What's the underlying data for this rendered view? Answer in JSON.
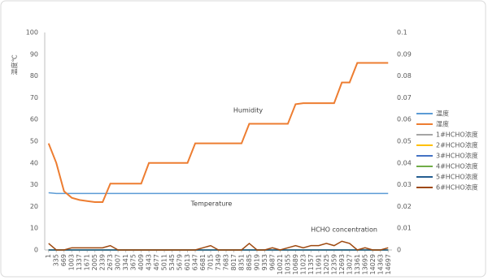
{
  "chart_data": {
    "type": "line",
    "y_label": "温度℃",
    "annotations": [
      "Humidity",
      "Temperature",
      "HCHO concentration"
    ],
    "categories": [
      1,
      335,
      669,
      1003,
      1337,
      1671,
      2005,
      2339,
      2673,
      3007,
      3341,
      3675,
      4009,
      4343,
      4677,
      5011,
      5345,
      5679,
      6013,
      6347,
      6681,
      7015,
      7349,
      7683,
      8017,
      8351,
      8685,
      9019,
      9353,
      9687,
      10021,
      10355,
      10689,
      11023,
      11357,
      11691,
      12025,
      12359,
      12693,
      13027,
      13361,
      13695,
      14029,
      14363,
      14697
    ],
    "ylim": [
      0,
      100
    ],
    "yticks": [
      0,
      10,
      20,
      30,
      40,
      50,
      60,
      70,
      80,
      90,
      100
    ],
    "y2lim": [
      0,
      0.1
    ],
    "y2ticks": [
      0,
      0.01,
      0.02,
      0.03,
      0.04,
      0.05,
      0.06,
      0.07,
      0.08,
      0.09,
      0.1
    ],
    "grid": false,
    "legend": "right",
    "series": [
      {
        "name": "温度",
        "color": "#5b9bd5",
        "values": [
          26.3,
          26,
          26,
          26,
          26,
          26,
          26,
          26,
          26,
          26,
          26,
          26,
          26,
          26,
          26,
          26,
          26,
          26,
          26,
          26,
          26,
          26,
          26,
          26,
          26,
          26,
          26,
          26,
          26,
          26,
          26,
          26,
          26,
          26,
          26,
          26,
          26,
          26,
          26,
          26,
          26,
          26,
          26,
          26,
          26
        ]
      },
      {
        "name": "湿度",
        "color": "#ed7d31",
        "values": [
          49,
          40,
          27,
          24,
          23,
          22.5,
          22,
          22,
          30.5,
          30.5,
          30.5,
          30.5,
          30.5,
          40,
          40,
          40,
          40,
          40,
          40,
          49,
          49,
          49,
          49,
          49,
          49,
          49,
          58,
          58,
          58,
          58,
          58,
          58,
          67,
          67.5,
          67.5,
          67.5,
          67.5,
          67.5,
          77,
          77,
          86,
          86,
          86,
          86,
          86
        ]
      },
      {
        "name": "1#HCHO浓度",
        "color": "#a5a5a5",
        "axis": "y2",
        "values": [
          0,
          0,
          0,
          0,
          0,
          0,
          0,
          0,
          0,
          0,
          0,
          0,
          0,
          0,
          0,
          0,
          0,
          0,
          0,
          0,
          0,
          0,
          0,
          0,
          0,
          0,
          0,
          0,
          0,
          0,
          0,
          0,
          0,
          0,
          0,
          0,
          0,
          0,
          0,
          0,
          0,
          0,
          0,
          0,
          0
        ]
      },
      {
        "name": "2#HCHO浓度",
        "color": "#ffc000",
        "axis": "y2",
        "values": [
          0,
          0,
          0,
          0,
          0,
          0,
          0,
          0,
          0,
          0,
          0,
          0,
          0,
          0,
          0,
          0,
          0,
          0,
          0,
          0,
          0,
          0,
          0,
          0,
          0,
          0,
          0,
          0,
          0,
          0,
          0,
          0,
          0,
          0,
          0,
          0,
          0,
          0,
          0,
          0,
          0,
          0,
          0,
          0,
          0
        ]
      },
      {
        "name": "3#HCHO浓度",
        "color": "#4472c4",
        "axis": "y2",
        "values": [
          0,
          0,
          0,
          0,
          0,
          0,
          0,
          0,
          0,
          0,
          0,
          0,
          0,
          0,
          0,
          0,
          0,
          0,
          0,
          0,
          0,
          0,
          0,
          0,
          0,
          0,
          0,
          0,
          0,
          0,
          0,
          0,
          0,
          0,
          0,
          0,
          0,
          0,
          0,
          0,
          0,
          0,
          0,
          0,
          0
        ]
      },
      {
        "name": "4#HCHO浓度",
        "color": "#70ad47",
        "axis": "y2",
        "values": [
          0,
          0,
          0,
          0,
          0,
          0,
          0,
          0,
          0,
          0,
          0,
          0,
          0,
          0,
          0,
          0,
          0,
          0,
          0,
          0,
          0,
          0,
          0,
          0,
          0,
          0,
          0,
          0,
          0,
          0,
          0,
          0,
          0,
          0,
          0,
          0,
          0,
          0,
          0,
          0,
          0,
          0,
          0,
          0,
          0
        ]
      },
      {
        "name": "5#HCHO浓度",
        "color": "#255e91",
        "axis": "y2",
        "values": [
          0,
          0,
          0,
          0,
          0,
          0,
          0,
          0,
          0,
          0,
          0,
          0,
          0,
          0,
          0,
          0,
          0,
          0,
          0,
          0,
          0,
          0,
          0,
          0,
          0,
          0,
          0,
          0,
          0,
          0,
          0,
          0,
          0,
          0,
          0,
          0,
          0,
          0,
          0,
          0,
          0,
          0,
          0,
          0,
          0
        ]
      },
      {
        "name": "6#HCHO浓度",
        "color": "#9e480e",
        "axis": "y2",
        "values": [
          0.003,
          0,
          0,
          0.001,
          0.001,
          0.001,
          0.001,
          0.001,
          0.002,
          0,
          0,
          0,
          0,
          0,
          0,
          0,
          0,
          0,
          0,
          0,
          0.001,
          0.002,
          0,
          0,
          0,
          0,
          0.003,
          0,
          0,
          0.001,
          0,
          0.001,
          0.002,
          0.001,
          0.002,
          0.002,
          0.003,
          0.002,
          0.004,
          0.003,
          0,
          0.001,
          0,
          0,
          0.001
        ]
      }
    ]
  }
}
